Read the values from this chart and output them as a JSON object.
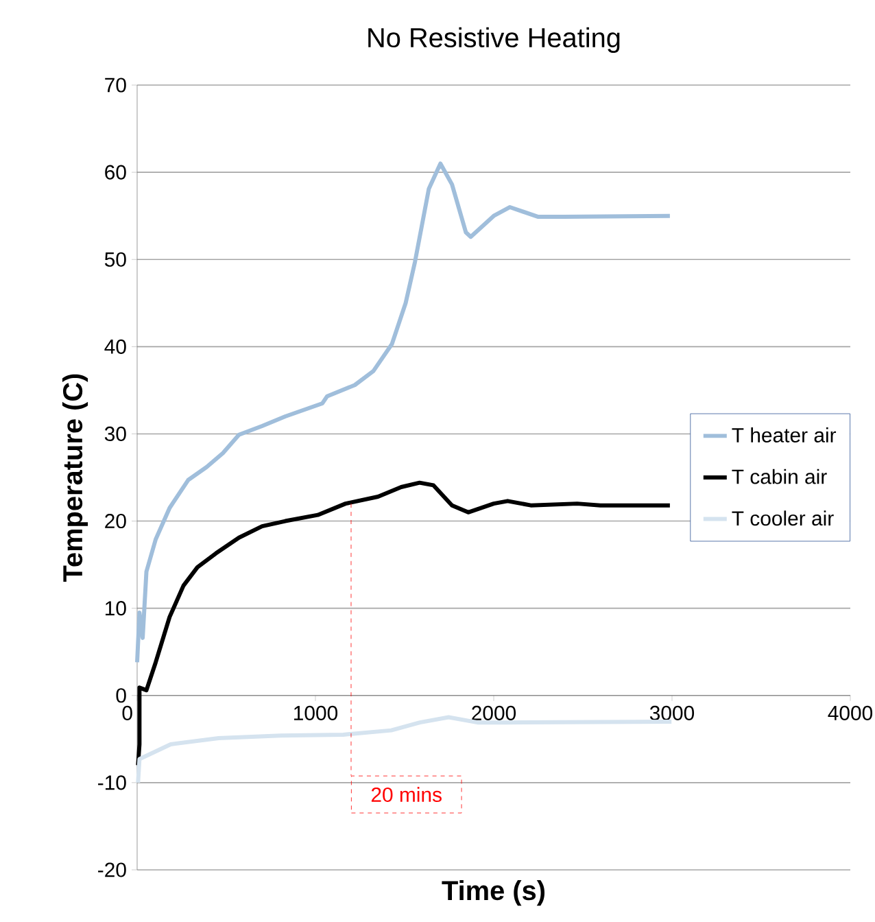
{
  "chart_data": {
    "type": "line",
    "title": "No Resistive Heating",
    "xlabel": "Time (s)",
    "ylabel": "Temperature (C)",
    "xlim": [
      0,
      4000
    ],
    "xticks": [
      0,
      1000,
      2000,
      3000,
      4000
    ],
    "ylim": [
      -20,
      70
    ],
    "yticks": [
      -20,
      -10,
      0,
      10,
      20,
      30,
      40,
      50,
      60,
      70
    ],
    "grid": "y",
    "legend": "right",
    "marker": "none",
    "line_style": "solid",
    "series": [
      {
        "name": "T heater air",
        "color": "#a0bedb",
        "x": [
          0,
          13,
          31,
          52,
          104,
          182,
          286,
          390,
          481,
          571,
          701,
          831,
          1039,
          1065,
          1221,
          1325,
          1429,
          1506,
          1558,
          1636,
          1701,
          1766,
          1844,
          1871,
          2000,
          2091,
          2247,
          2390,
          2988
        ],
        "values": [
          3.8,
          9.5,
          6.6,
          14.2,
          17.9,
          21.5,
          24.7,
          26.2,
          27.8,
          29.9,
          30.9,
          32.0,
          33.5,
          34.3,
          35.6,
          37.2,
          40.3,
          45.0,
          49.7,
          58.1,
          61.0,
          58.6,
          53.1,
          52.6,
          55.0,
          56.0,
          54.9,
          54.9,
          55.0
        ]
      },
      {
        "name": "T cabin air",
        "color": "#000000",
        "x": [
          5,
          13,
          13,
          52,
          104,
          182,
          260,
          338,
          442,
          571,
          701,
          831,
          1013,
          1169,
          1351,
          1481,
          1584,
          1662,
          1766,
          1857,
          2000,
          2078,
          2208,
          2468,
          2598,
          2988
        ],
        "values": [
          -8,
          -5.6,
          0.9,
          0.6,
          3.8,
          9.0,
          12.6,
          14.7,
          16.3,
          18.1,
          19.4,
          20.0,
          20.7,
          22.0,
          22.8,
          23.9,
          24.4,
          24.1,
          21.8,
          21.0,
          22.0,
          22.3,
          21.8,
          22.0,
          21.8,
          21.8
        ]
      },
      {
        "name": "T cooler air",
        "color": "#d5e3ef",
        "x": [
          5,
          13,
          188,
          457,
          806,
          1156,
          1425,
          1586,
          1747,
          1909,
          2070,
          2997
        ],
        "values": [
          -10,
          -7.3,
          -5.6,
          -4.9,
          -4.6,
          -4.5,
          -4.0,
          -3.1,
          -2.5,
          -3.1,
          -3.1,
          -3.0
        ]
      }
    ],
    "annotations": [
      {
        "text": "20 mins",
        "x": 1200,
        "y": 22
      }
    ]
  }
}
